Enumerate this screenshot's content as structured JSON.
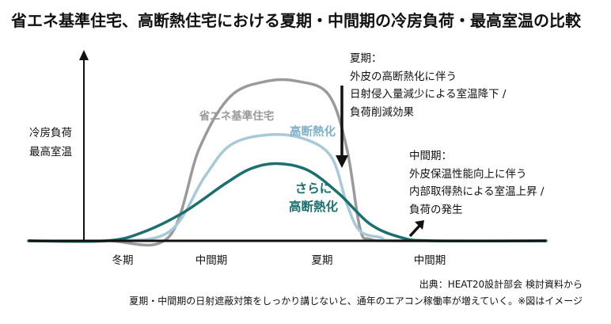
{
  "chart_data": {
    "type": "line",
    "title": "省エネ基準住宅、高断熱住宅における夏期・中間期の冷房負荷・最高室温の比較",
    "ylabel": [
      "冷房負荷",
      "最高室温"
    ],
    "xlabel": "",
    "x_labels": [
      "冬期",
      "中間期",
      "夏期",
      "中間期"
    ],
    "series": [
      {
        "name": "省エネ基準住宅",
        "color": "#9a9a9a",
        "width": 3.5,
        "points": [
          [
            0,
            0
          ],
          [
            0.15,
            0
          ],
          [
            0.27,
            0.02
          ],
          [
            0.33,
            0.55
          ],
          [
            0.39,
            0.86
          ],
          [
            0.46,
            0.95
          ],
          [
            0.52,
            0.95
          ],
          [
            0.58,
            0.87
          ],
          [
            0.615,
            0.55
          ],
          [
            0.64,
            0.08
          ],
          [
            0.66,
            0.01
          ],
          [
            0.72,
            0
          ],
          [
            1,
            0
          ]
        ]
      },
      {
        "name": "高断熱化",
        "color": "#a9c8d8",
        "width": 3.5,
        "points": [
          [
            0,
            0
          ],
          [
            0.15,
            0
          ],
          [
            0.27,
            0.05
          ],
          [
            0.34,
            0.38
          ],
          [
            0.39,
            0.57
          ],
          [
            0.46,
            0.63
          ],
          [
            0.53,
            0.61
          ],
          [
            0.585,
            0.5
          ],
          [
            0.615,
            0.22
          ],
          [
            0.64,
            0.06
          ],
          [
            0.68,
            0.02
          ],
          [
            0.72,
            0
          ],
          [
            1,
            0
          ]
        ]
      },
      {
        "name": "さらに高断熱化",
        "color": "#1c6f6f",
        "width": 3.5,
        "points": [
          [
            0,
            0
          ],
          [
            0.15,
            0
          ],
          [
            0.22,
            0.05
          ],
          [
            0.3,
            0.17
          ],
          [
            0.38,
            0.34
          ],
          [
            0.43,
            0.43
          ],
          [
            0.48,
            0.46
          ],
          [
            0.54,
            0.42
          ],
          [
            0.6,
            0.28
          ],
          [
            0.66,
            0.1
          ],
          [
            0.72,
            0.02
          ],
          [
            0.78,
            0
          ],
          [
            1,
            0
          ]
        ]
      }
    ],
    "series_labels": [
      {
        "text": "省エネ基準住宅",
        "color": "#9a9a9a"
      },
      {
        "text": "高断熱化",
        "color": "#7fb0c9"
      },
      {
        "text": [
          "さらに",
          "高断熱化"
        ],
        "color": "#1c6f6f"
      }
    ],
    "annotations": [
      {
        "name": "summer-note",
        "lines": [
          "夏期：",
          "外皮の高断熱化に伴う",
          "日射侵入量減少による室温降下 /",
          "負荷削減効果"
        ]
      },
      {
        "name": "midseason-note",
        "lines": [
          "中間期：",
          "外皮保温性能向上に伴う",
          "内部取得熱による室温上昇 /",
          "負荷の発生"
        ]
      }
    ],
    "arrow_color": "#111111",
    "baseline_color": "#111111"
  },
  "source": "出典：HEAT20設計部会 検討資料から",
  "caption": "夏期・中間期の日射遮蔽対策をしっかり講じないと、通年のエアコン稼働率が増えていく。※図はイメージ"
}
